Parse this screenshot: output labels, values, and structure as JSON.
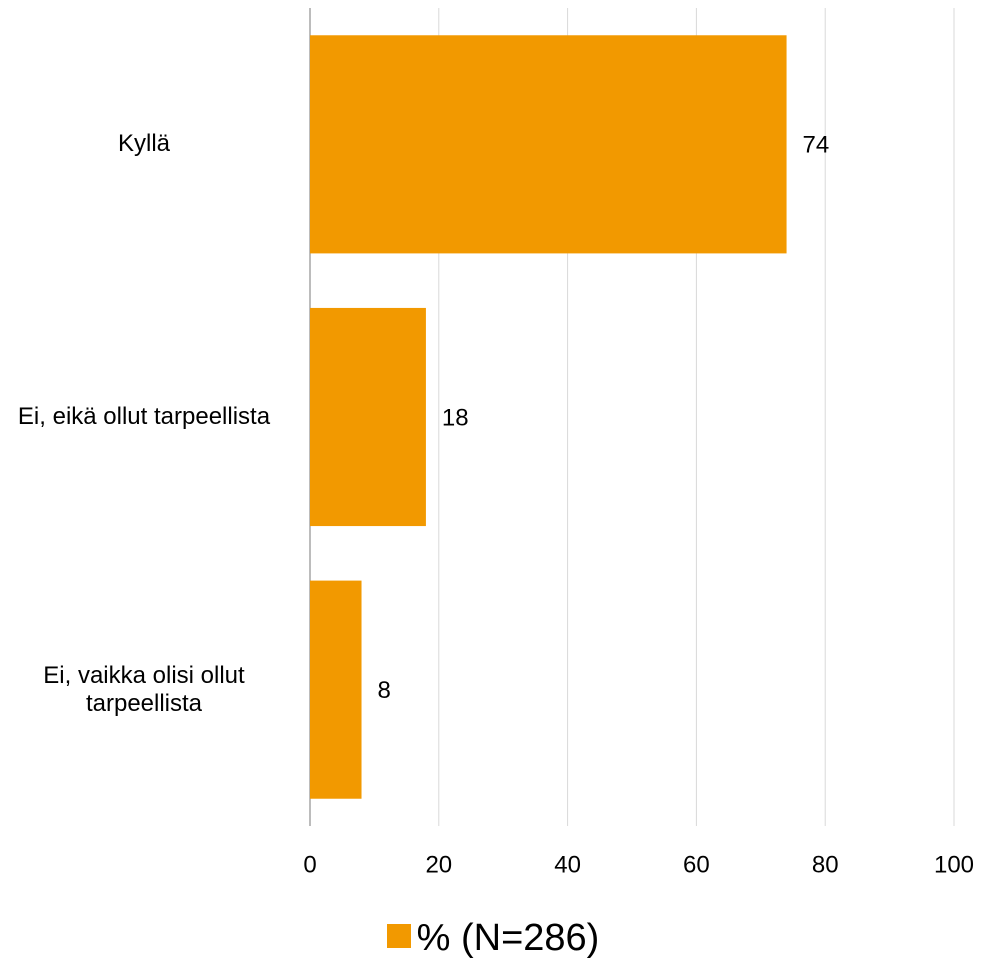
{
  "chart_data": {
    "type": "bar",
    "orientation": "horizontal",
    "categories": [
      "Kyllä",
      "Ei, eikä ollut tarpeellista",
      "Ei, vaikka olisi ollut tarpeellista"
    ],
    "series": [
      {
        "name": "% (N=286)",
        "color": "#f29900",
        "values": [
          74,
          18,
          8
        ]
      }
    ],
    "xlim": [
      0,
      100
    ],
    "xticks": [
      0,
      20,
      40,
      60,
      80,
      100
    ],
    "grid": true,
    "legend": "bottom"
  }
}
